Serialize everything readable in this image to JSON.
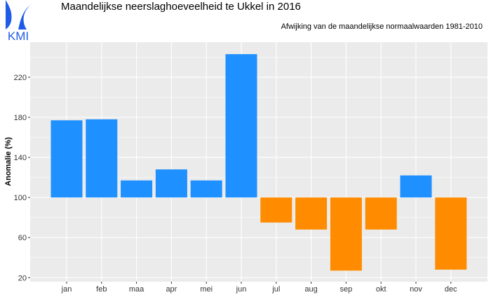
{
  "logo_text": "KMI",
  "chart_data": {
    "type": "bar",
    "title": "Maandelijkse neerslaghoeveelheid te Ukkel in  2016",
    "subtitle": "Afwijking van de maandelijkse normaalwaarden 1981-2010",
    "xlabel": "",
    "ylabel": "Anomalie (%)",
    "baseline": 100,
    "categories": [
      "jan",
      "feb",
      "maa",
      "apr",
      "mei",
      "jun",
      "jul",
      "aug",
      "sep",
      "okt",
      "nov",
      "dec"
    ],
    "values": [
      177,
      178,
      117,
      128,
      117,
      243,
      75,
      68,
      27,
      68,
      122,
      28
    ],
    "ylim": [
      16,
      255
    ],
    "yticks": [
      20,
      60,
      100,
      140,
      180,
      220
    ],
    "grid": true,
    "colors": {
      "above": "#1E90FF",
      "below": "#FF8C00",
      "panel": "#EBEBEB",
      "grid": "#FFFFFF",
      "logo": "#1E5BE6"
    }
  }
}
